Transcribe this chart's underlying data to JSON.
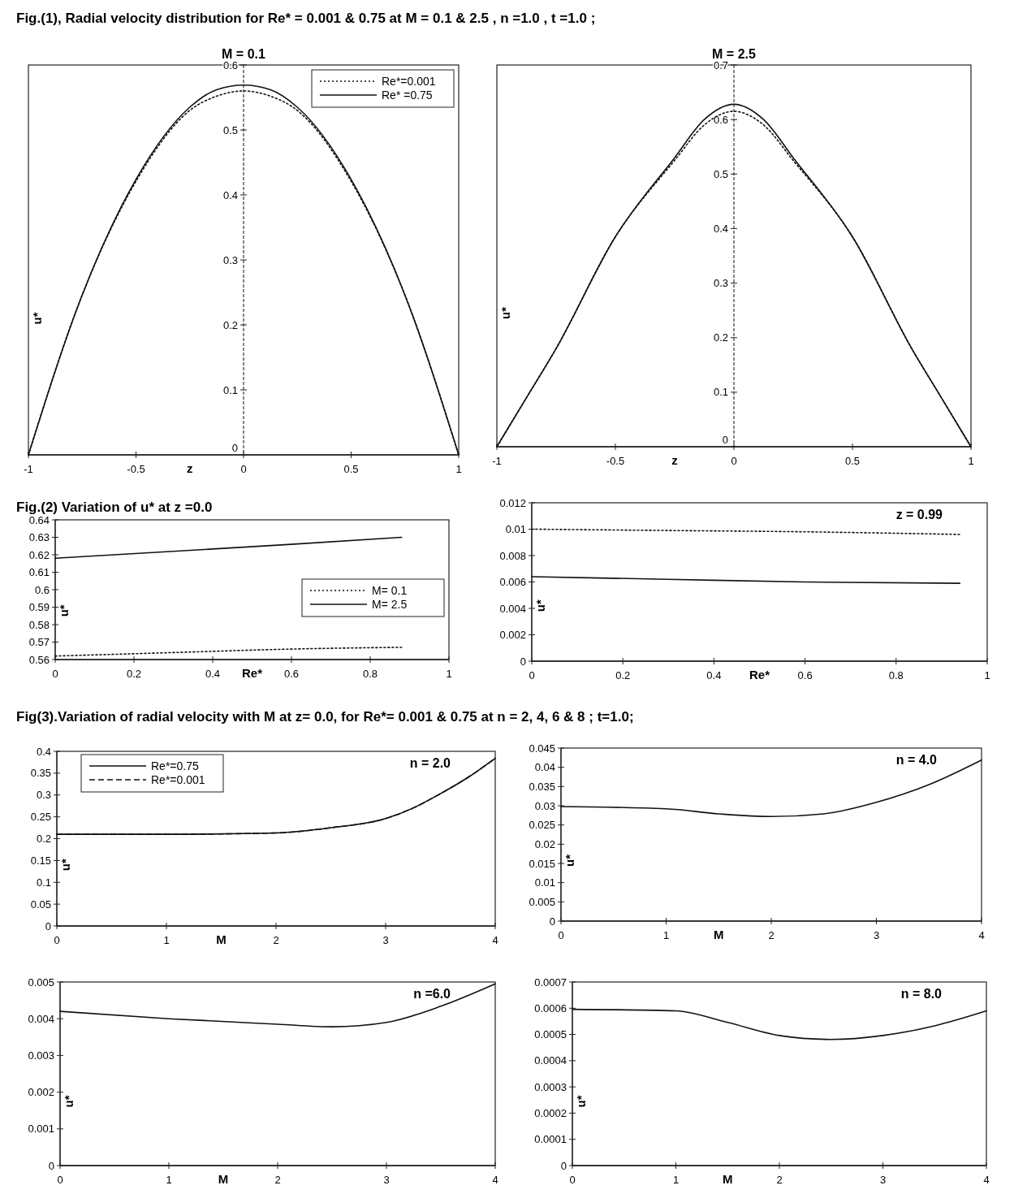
{
  "chart_data": [
    {
      "type": "line",
      "title": "Fig.(1), Radial velocity distribution for   Re* = 0.001 & 0.75  at  M = 0.1 & 2.5 , n =1.0 , t =1.0 ;",
      "xlabel": "z",
      "ylabel": "u*",
      "xlim": [
        -1,
        1
      ],
      "ylim": [
        0,
        0.6
      ],
      "xticks": [
        -1,
        -0.5,
        0,
        0.5,
        1
      ],
      "yticks": [
        0,
        0.1,
        0.2,
        0.3,
        0.4,
        0.5,
        0.6
      ],
      "legend": "top right",
      "annotations": [
        "M = 0.1"
      ],
      "series": [
        {
          "name": "Re*=0.001",
          "color": "#111111",
          "line_style": "dotted",
          "x": [
            -1,
            -0.75,
            -0.5,
            -0.25,
            -0.125,
            0,
            0.125,
            0.25,
            0.5,
            0.75,
            1
          ],
          "values": [
            0,
            0.246,
            0.421,
            0.53,
            0.552,
            0.56,
            0.552,
            0.53,
            0.421,
            0.246,
            0
          ]
        },
        {
          "name": "Re* =0.75",
          "color": "#111111",
          "line_style": "solid",
          "x": [
            -1,
            -0.75,
            -0.5,
            -0.25,
            -0.125,
            0,
            0.125,
            0.25,
            0.5,
            0.75,
            1
          ],
          "values": [
            0,
            0.246,
            0.424,
            0.535,
            0.562,
            0.569,
            0.562,
            0.535,
            0.424,
            0.246,
            0
          ]
        }
      ]
    },
    {
      "type": "line",
      "xlabel": "z",
      "ylabel": "u*",
      "xlim": [
        -1,
        1
      ],
      "ylim": [
        0,
        0.7
      ],
      "xticks": [
        -1,
        -0.5,
        0,
        0.5,
        1
      ],
      "yticks": [
        0,
        0.1,
        0.2,
        0.3,
        0.4,
        0.5,
        0.6,
        0.7
      ],
      "annotations": [
        "M = 2.5"
      ],
      "series": [
        {
          "color": "#111111",
          "line_style": "dotted",
          "x": [
            -1,
            -0.875,
            -0.75,
            -0.5,
            -0.25,
            -0.125,
            0,
            0.125,
            0.25,
            0.5,
            0.75,
            0.875,
            1
          ],
          "values": [
            0,
            0.09,
            0.18,
            0.385,
            0.525,
            0.59,
            0.615,
            0.59,
            0.525,
            0.385,
            0.18,
            0.09,
            0
          ]
        },
        {
          "color": "#111111",
          "line_style": "solid",
          "x": [
            -1,
            -0.875,
            -0.75,
            -0.5,
            -0.25,
            -0.125,
            0,
            0.125,
            0.25,
            0.5,
            0.75,
            0.875,
            1
          ],
          "values": [
            0,
            0.09,
            0.18,
            0.385,
            0.53,
            0.6,
            0.628,
            0.6,
            0.53,
            0.385,
            0.18,
            0.09,
            0
          ]
        }
      ]
    },
    {
      "type": "line",
      "title": "Fig.(2)    Variation of u* at z =0.0",
      "xlabel": "Re*",
      "ylabel": "u*",
      "xlim": [
        0,
        1
      ],
      "ylim": [
        0.56,
        0.64
      ],
      "xticks": [
        0,
        0.2,
        0.4,
        0.6,
        0.8,
        1
      ],
      "yticks": [
        0.56,
        0.57,
        0.58,
        0.59,
        0.6,
        0.61,
        0.62,
        0.63,
        0.64
      ],
      "legend": "right",
      "series": [
        {
          "name": "M= 0.1",
          "color": "#111111",
          "line_style": "dotted",
          "x": [
            0,
            0.3,
            0.6,
            0.88
          ],
          "values": [
            0.562,
            0.564,
            0.566,
            0.567
          ]
        },
        {
          "name": "M= 2.5",
          "color": "#111111",
          "line_style": "solid",
          "x": [
            0,
            0.3,
            0.6,
            0.88
          ],
          "values": [
            0.618,
            0.622,
            0.626,
            0.63
          ]
        }
      ]
    },
    {
      "type": "line",
      "xlabel": "Re*",
      "ylabel": "u*",
      "xlim": [
        0,
        1
      ],
      "ylim": [
        0,
        0.012
      ],
      "xticks": [
        0,
        0.2,
        0.4,
        0.6,
        0.8,
        1
      ],
      "yticks": [
        0,
        0.002,
        0.004,
        0.006,
        0.008,
        0.01,
        0.012
      ],
      "annotations": [
        "z = 0.99"
      ],
      "series": [
        {
          "color": "#111111",
          "line_style": "dotted",
          "x": [
            0,
            0.3,
            0.6,
            0.94
          ],
          "values": [
            0.01,
            0.0099,
            0.0098,
            0.0096
          ]
        },
        {
          "color": "#111111",
          "line_style": "solid",
          "x": [
            0,
            0.3,
            0.6,
            0.94
          ],
          "values": [
            0.0064,
            0.0062,
            0.006,
            0.0059
          ]
        }
      ]
    },
    {
      "type": "line",
      "title": "Fig(3).Variation of radial velocity with  M at z= 0.0, for Re*= 0.001 & 0.75 at  n = 2, 4, 6 & 8 ;  t=1.0;",
      "xlabel": "M",
      "ylabel": "u*",
      "xlim": [
        0,
        4
      ],
      "ylim": [
        0,
        0.4
      ],
      "xticks": [
        0,
        1,
        2,
        3,
        4
      ],
      "yticks": [
        0,
        0.05,
        0.1,
        0.15,
        0.2,
        0.25,
        0.3,
        0.35,
        0.4
      ],
      "legend": "top left",
      "annotations": [
        "n = 2.0"
      ],
      "series": [
        {
          "name": "Re*=0.75",
          "color": "#111111",
          "line_style": "solid",
          "x": [
            0,
            1,
            2,
            2.5,
            3,
            3.25,
            3.5,
            3.75,
            4
          ],
          "values": [
            0.21,
            0.21,
            0.213,
            0.225,
            0.246,
            0.27,
            0.303,
            0.34,
            0.384
          ]
        },
        {
          "name": "Re*=0.001",
          "color": "#111111",
          "line_style": "dashed",
          "x": [
            0,
            1,
            2,
            2.5,
            3,
            3.25,
            3.5,
            3.75,
            4
          ],
          "values": [
            0.21,
            0.21,
            0.213,
            0.225,
            0.246,
            0.27,
            0.303,
            0.34,
            0.384
          ]
        }
      ]
    },
    {
      "type": "line",
      "xlabel": "M",
      "ylabel": "u*",
      "xlim": [
        0,
        4
      ],
      "ylim": [
        0,
        0.045
      ],
      "xticks": [
        0,
        1,
        2,
        3,
        4
      ],
      "yticks": [
        0,
        0.005,
        0.01,
        0.015,
        0.02,
        0.025,
        0.03,
        0.035,
        0.04,
        0.045
      ],
      "annotations": [
        "n = 4.0"
      ],
      "series": [
        {
          "color": "#111111",
          "line_style": "solid",
          "x": [
            0,
            1,
            1.5,
            2,
            2.5,
            3,
            3.5,
            4
          ],
          "values": [
            0.0298,
            0.0292,
            0.0279,
            0.0272,
            0.0279,
            0.0309,
            0.0355,
            0.0419
          ]
        }
      ]
    },
    {
      "type": "line",
      "xlabel": "M",
      "ylabel": "u*",
      "xlim": [
        0,
        4
      ],
      "ylim": [
        0,
        0.005
      ],
      "xticks": [
        0,
        1,
        2,
        3,
        4
      ],
      "yticks": [
        0,
        0.001,
        0.002,
        0.003,
        0.004,
        0.005
      ],
      "annotations": [
        "n =6.0"
      ],
      "series": [
        {
          "color": "#111111",
          "line_style": "solid",
          "x": [
            0,
            1,
            2,
            2.5,
            3,
            3.5,
            4
          ],
          "values": [
            0.0042,
            0.004,
            0.00385,
            0.00378,
            0.0039,
            0.00434,
            0.00495
          ]
        }
      ]
    },
    {
      "type": "line",
      "xlabel": "M",
      "ylabel": "u*",
      "xlim": [
        0,
        4
      ],
      "ylim": [
        0,
        0.0007
      ],
      "xticks": [
        0,
        1,
        2,
        3,
        4
      ],
      "yticks": [
        0,
        0.0001,
        0.0002,
        0.0003,
        0.0004,
        0.0005,
        0.0006,
        0.0007
      ],
      "annotations": [
        "n = 8.0"
      ],
      "series": [
        {
          "color": "#111111",
          "line_style": "solid",
          "x": [
            0,
            1,
            1.5,
            2,
            2.5,
            3,
            3.5,
            4
          ],
          "values": [
            0.000596,
            0.00059,
            0.000546,
            0.000496,
            0.000481,
            0.000496,
            0.000533,
            0.00059
          ]
        }
      ]
    }
  ]
}
